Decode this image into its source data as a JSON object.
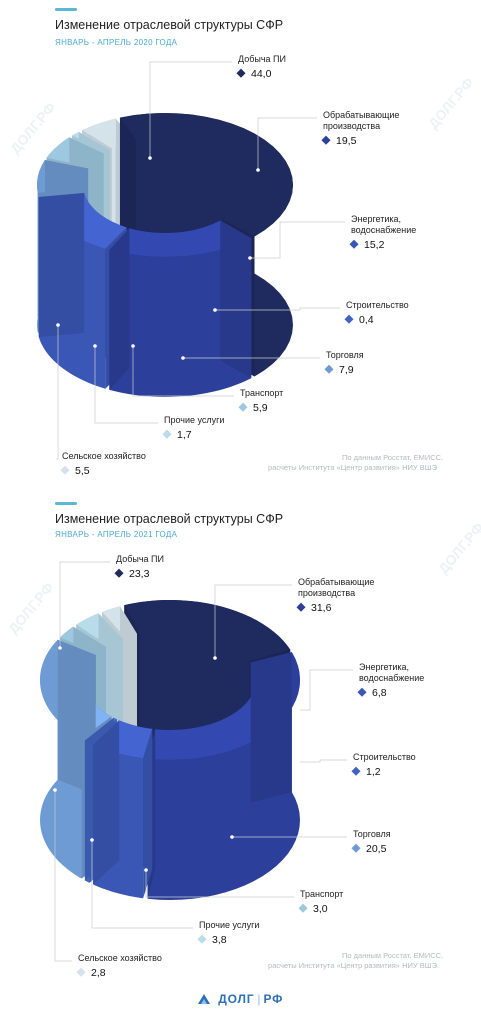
{
  "colors": {
    "accent": "#5bb7d6",
    "subtitle": "#4aa8d0",
    "marker_dark": "#1f2a5e"
  },
  "charts": [
    {
      "title": "Изменение отраслевой структуры СФР",
      "subtitle": "ЯНВАРЬ - АПРЕЛЬ 2020 ГОДА",
      "source_line1": "По данным Росстат, ЕМИСС,",
      "source_line2": "расчеты Института «Центр развития» НИУ ВШЭ",
      "chart_data": {
        "type": "pie",
        "title": "Изменение отраслевой структуры СФР",
        "subtitle": "ЯНВАРЬ - АПРЕЛЬ 2020 ГОДА",
        "categories": [
          "Добыча ПИ",
          "Обрабатывающие производства",
          "Энергетика, водоснабжение",
          "Строительство",
          "Торговля",
          "Транспорт",
          "Прочие услуги",
          "Сельское хозяйство"
        ],
        "values": [
          44.0,
          19.5,
          15.2,
          0.4,
          7.9,
          5.9,
          1.7,
          5.5
        ],
        "value_labels": [
          "44,0",
          "19,5",
          "15,2",
          "0,4",
          "7,9",
          "5,9",
          "1,7",
          "5,5"
        ],
        "label_lines": [
          [
            "Добыча ПИ"
          ],
          [
            "Обрабатывающие",
            "производства"
          ],
          [
            "Энергетика,",
            "водоснабжение"
          ],
          [
            "Строительство"
          ],
          [
            "Торговля"
          ],
          [
            "Транспорт"
          ],
          [
            "Прочие услуги"
          ],
          [
            "Сельское хозяйство"
          ]
        ],
        "colors": [
          "#1f2a5e",
          "#2c3f9a",
          "#3a57b6",
          "#4065c0",
          "#6f9bd4",
          "#9ec8e0",
          "#b9dcea",
          "#d4e2ea"
        ]
      }
    },
    {
      "title": "Изменение отраслевой структуры СФР",
      "subtitle": "ЯНВАРЬ - АПРЕЛЬ 2021 ГОДА",
      "source_line1": "По данным Росстат, ЕМИСС,",
      "source_line2": "расчеты Института «Центр развития» НИУ ВШЭ.",
      "chart_data": {
        "type": "pie",
        "title": "Изменение отраслевой структуры СФР",
        "subtitle": "ЯНВАРЬ - АПРЕЛЬ 2021 ГОДА",
        "categories": [
          "Добыча ПИ",
          "Обрабатывающие производства",
          "Энергетика, водоснабжение",
          "Строительство",
          "Торговля",
          "Транспорт",
          "Прочие услуги",
          "Сельское хозяйство"
        ],
        "values": [
          23.3,
          31.6,
          6.8,
          1.2,
          20.5,
          3.0,
          3.8,
          2.8
        ],
        "value_labels": [
          "23,3",
          "31,6",
          "6,8",
          "1,2",
          "20,5",
          "3,0",
          "3,8",
          "2,8"
        ],
        "label_lines": [
          [
            "Добыча ПИ"
          ],
          [
            "Обрабатывающие",
            "производства"
          ],
          [
            "Энергетика,",
            "водоснабжение"
          ],
          [
            "Строительство"
          ],
          [
            "Торговля"
          ],
          [
            "Транспорт"
          ],
          [
            "Прочие услуги"
          ],
          [
            "Сельское хозяйство"
          ]
        ],
        "colors": [
          "#1f2a5e",
          "#2c3f9a",
          "#3a57b6",
          "#4065c0",
          "#6f9bd4",
          "#9ec8e0",
          "#b9dcea",
          "#d4e2ea"
        ]
      }
    }
  ],
  "logo": {
    "left": "ДОЛГ",
    "right": "РФ",
    "color": "#2f6fb6"
  },
  "watermark": "ДОЛГ.РФ"
}
